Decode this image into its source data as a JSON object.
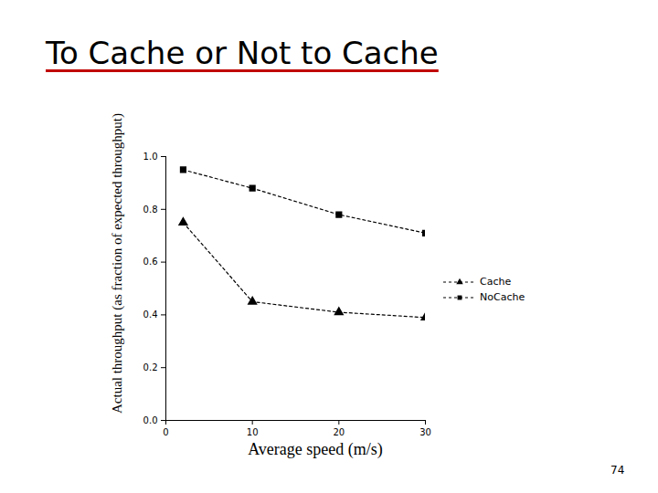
{
  "chart_data": {
    "type": "line",
    "title": "To Cache or Not to Cache",
    "x_label": "Average speed (m/s)",
    "y_label": "Actual throughput (as fraction of expected throughput)",
    "x": [
      2,
      10,
      20,
      30
    ],
    "series": [
      {
        "name": "Cache",
        "color": "#000000",
        "marker": "triangle",
        "line_style": "dashed",
        "values": [
          0.75,
          0.45,
          0.41,
          0.39
        ]
      },
      {
        "name": "NoCache",
        "color": "#000000",
        "marker": "square",
        "line_style": "dashed",
        "values": [
          0.95,
          0.88,
          0.78,
          0.71
        ]
      }
    ],
    "xlim": [
      0,
      30
    ],
    "xticks": [
      0,
      10,
      20,
      30
    ],
    "ylim": [
      0,
      1
    ],
    "yticks": [
      {
        "value": 0,
        "label": "0.0"
      },
      {
        "value": 0.2,
        "label": "0.2"
      },
      {
        "value": 0.4,
        "label": "0.4"
      },
      {
        "value": 0.6,
        "label": "0.6"
      },
      {
        "value": 0.8,
        "label": "0.8"
      },
      {
        "value": 1,
        "label": "1.0"
      }
    ],
    "grid": false,
    "legend": "right"
  },
  "page_number": "74"
}
